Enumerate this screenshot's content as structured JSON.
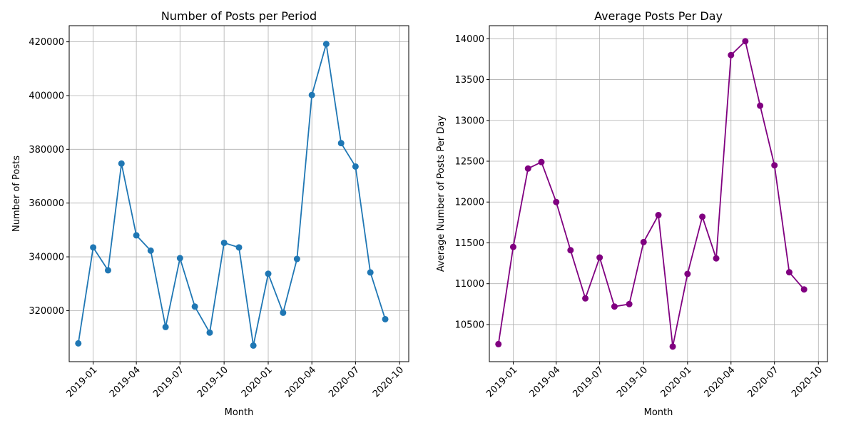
{
  "chart_data": [
    {
      "type": "line",
      "title": "Number of Posts per Period",
      "xlabel": "Month",
      "ylabel": "Number of Posts",
      "x": [
        "2018-12-01",
        "2019-01-01",
        "2019-02-01",
        "2019-03-01",
        "2019-04-01",
        "2019-05-01",
        "2019-06-01",
        "2019-07-01",
        "2019-08-01",
        "2019-09-01",
        "2019-10-01",
        "2019-11-01",
        "2019-12-01",
        "2020-01-01",
        "2020-02-01",
        "2020-03-01",
        "2020-04-01",
        "2020-05-01",
        "2020-06-01",
        "2020-07-01",
        "2020-08-01",
        "2020-09-01"
      ],
      "series": [
        {
          "values": [
            307800,
            343500,
            335000,
            374700,
            348000,
            342300,
            313900,
            339500,
            321500,
            311800,
            345200,
            343500,
            307000,
            333700,
            319200,
            339200,
            400200,
            419200,
            382300,
            373600,
            334200,
            316800
          ],
          "color": "#1f77b4"
        }
      ],
      "xlim": [
        "2018-11-12",
        "2020-10-20"
      ],
      "ylim": [
        301000,
        426000
      ],
      "yticks": [
        320000,
        340000,
        360000,
        380000,
        400000,
        420000
      ],
      "xticks": [
        "2019-01",
        "2019-04",
        "2019-07",
        "2019-10",
        "2020-01",
        "2020-04",
        "2020-07",
        "2020-10"
      ],
      "grid": true
    },
    {
      "type": "line",
      "title": "Average Posts Per Day",
      "xlabel": "Month",
      "ylabel": "Average Number of Posts Per Day",
      "x": [
        "2018-12-01",
        "2019-01-01",
        "2019-02-01",
        "2019-03-01",
        "2019-04-01",
        "2019-05-01",
        "2019-06-01",
        "2019-07-01",
        "2019-08-01",
        "2019-09-01",
        "2019-10-01",
        "2019-11-01",
        "2019-12-01",
        "2020-01-01",
        "2020-02-01",
        "2020-03-01",
        "2020-04-01",
        "2020-05-01",
        "2020-06-01",
        "2020-07-01",
        "2020-08-01",
        "2020-09-01"
      ],
      "series": [
        {
          "values": [
            10260,
            11450,
            12410,
            12490,
            12000,
            11410,
            10820,
            11320,
            10720,
            10750,
            11510,
            11840,
            10230,
            11120,
            11820,
            11310,
            13800,
            13970,
            13180,
            12450,
            11140,
            10930
          ],
          "color": "#800080"
        }
      ],
      "xlim": [
        "2018-11-12",
        "2020-10-20"
      ],
      "ylim": [
        10045,
        14160
      ],
      "yticks": [
        10500,
        11000,
        11500,
        12000,
        12500,
        13000,
        13500,
        14000
      ],
      "xticks": [
        "2019-01",
        "2019-04",
        "2019-07",
        "2019-10",
        "2020-01",
        "2020-04",
        "2020-07",
        "2020-10"
      ],
      "grid": true
    }
  ]
}
